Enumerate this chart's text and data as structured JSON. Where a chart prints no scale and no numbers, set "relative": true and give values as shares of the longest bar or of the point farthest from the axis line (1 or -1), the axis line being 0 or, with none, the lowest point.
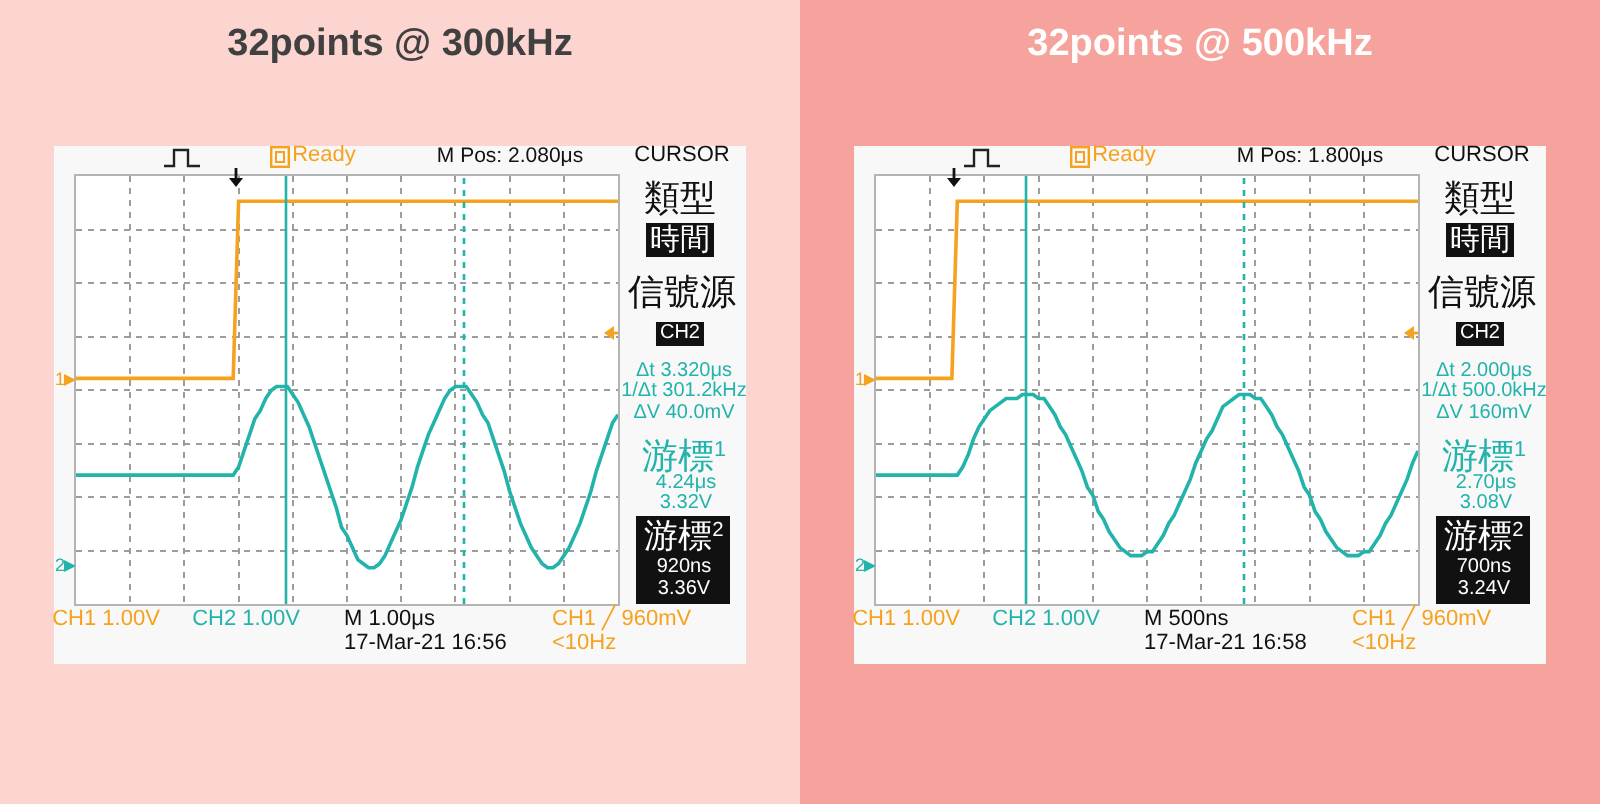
{
  "chart_data": [
    {
      "type": "line",
      "title": "32points @ 300kHz",
      "relative": true,
      "grid": true,
      "categories": [
        null,
        null,
        null,
        null,
        null,
        null,
        null,
        null,
        null,
        null,
        null,
        null,
        null,
        null,
        null,
        null,
        null,
        null,
        null,
        null,
        null,
        null,
        null,
        null,
        null,
        null,
        null,
        null,
        null,
        null,
        null,
        null,
        null,
        null,
        null,
        null,
        null,
        null,
        null,
        null,
        null,
        null,
        null,
        null,
        null,
        null,
        null,
        null,
        null,
        null,
        null,
        null,
        null,
        null,
        null,
        null,
        null,
        null,
        null,
        null,
        null,
        null,
        null,
        null,
        null,
        null,
        null,
        null,
        null,
        null,
        null,
        null,
        null,
        null,
        null,
        null,
        null,
        null,
        null,
        null,
        null,
        null,
        null,
        null,
        null,
        null,
        null,
        null,
        null,
        null,
        null,
        null,
        null,
        null,
        null,
        null,
        null,
        null,
        null,
        null,
        null
      ],
      "series": [
        {
          "color": "#f5a21e",
          "values": [
            0.56,
            0.56,
            0.56,
            0.56,
            0.56,
            0.56,
            0.56,
            0.56,
            0.56,
            0.56,
            0.56,
            0.56,
            0.56,
            0.56,
            0.56,
            0.56,
            0.56,
            0.56,
            0.56,
            0.56,
            0.56,
            0.56,
            0.56,
            0.56,
            0.56,
            0.56,
            0.56,
            0.56,
            0.56,
            0.56,
            1,
            1,
            1,
            1,
            1,
            1,
            1,
            1,
            1,
            1,
            1,
            1,
            1,
            1,
            1,
            1,
            1,
            1,
            1,
            1,
            1,
            1,
            1,
            1,
            1,
            1,
            1,
            1,
            1,
            1,
            1,
            1,
            1,
            1,
            1,
            1,
            1,
            1,
            1,
            1,
            1,
            1,
            1,
            1,
            1,
            1,
            1,
            1,
            1,
            1,
            1,
            1,
            1,
            1,
            1,
            1,
            1,
            1,
            1,
            1,
            1,
            1,
            1,
            1,
            1,
            1,
            1,
            1,
            1,
            1,
            1
          ]
        },
        {
          "color": "#22b3ab",
          "values": [
            0.32,
            0.32,
            0.32,
            0.32,
            0.32,
            0.32,
            0.32,
            0.32,
            0.32,
            0.32,
            0.32,
            0.32,
            0.32,
            0.32,
            0.32,
            0.32,
            0.32,
            0.32,
            0.32,
            0.32,
            0.32,
            0.32,
            0.32,
            0.32,
            0.32,
            0.32,
            0.32,
            0.32,
            0.32,
            0.32,
            0.34,
            0.38,
            0.42,
            0.46,
            0.48,
            0.51,
            0.53,
            0.54,
            0.54,
            0.54,
            0.52,
            0.5,
            0.47,
            0.44,
            0.4,
            0.36,
            0.32,
            0.28,
            0.24,
            0.19,
            0.17,
            0.14,
            0.11,
            0.1,
            0.09,
            0.09,
            0.1,
            0.12,
            0.15,
            0.18,
            0.21,
            0.25,
            0.29,
            0.34,
            0.38,
            0.42,
            0.45,
            0.48,
            0.51,
            0.53,
            0.54,
            0.54,
            0.54,
            0.52,
            0.5,
            0.47,
            0.45,
            0.41,
            0.37,
            0.33,
            0.28,
            0.24,
            0.2,
            0.17,
            0.14,
            0.12,
            0.1,
            0.09,
            0.09,
            0.1,
            0.12,
            0.14,
            0.17,
            0.2,
            0.24,
            0.28,
            0.33,
            0.37,
            0.41,
            0.45,
            0.47
          ]
        }
      ],
      "annotations": [
        "Ready",
        "M Pos: 2.080μs",
        "CURSOR",
        "類型",
        "時間",
        "信號源",
        "CH2",
        "Δt 3.320μs",
        "1/Δt 301.2kHz",
        "ΔV 40.0mV",
        "游標$^{1}$",
        "4.24μs",
        "3.32V",
        "游標$^{2}$",
        "920ns",
        "3.36V",
        "CH1 1.00V",
        "CH2 1.00V",
        "M 1.00μs",
        "17-Mar-21 16:56",
        "CH1 ╱ 960mV",
        "<10Hz",
        "1",
        "2"
      ]
    },
    {
      "type": "line",
      "title": "32points @ 500kHz",
      "relative": true,
      "grid": true,
      "categories": [
        null,
        null,
        null,
        null,
        null,
        null,
        null,
        null,
        null,
        null,
        null,
        null,
        null,
        null,
        null,
        null,
        null,
        null,
        null,
        null,
        null,
        null,
        null,
        null,
        null,
        null,
        null,
        null,
        null,
        null,
        null,
        null,
        null,
        null,
        null,
        null,
        null,
        null,
        null,
        null,
        null,
        null,
        null,
        null,
        null,
        null,
        null,
        null,
        null,
        null,
        null,
        null,
        null,
        null,
        null,
        null,
        null,
        null,
        null,
        null,
        null,
        null,
        null,
        null,
        null,
        null,
        null,
        null,
        null,
        null,
        null,
        null,
        null,
        null,
        null,
        null,
        null,
        null,
        null,
        null,
        null,
        null,
        null,
        null,
        null,
        null,
        null,
        null,
        null,
        null,
        null,
        null,
        null,
        null,
        null,
        null,
        null,
        null,
        null,
        null,
        null
      ],
      "series": [
        {
          "color": "#f5a21e",
          "values": [
            0.56,
            0.56,
            0.56,
            0.56,
            0.56,
            0.56,
            0.56,
            0.56,
            0.56,
            0.56,
            0.56,
            0.56,
            0.56,
            0.56,
            0.56,
            1,
            1,
            1,
            1,
            1,
            1,
            1,
            1,
            1,
            1,
            1,
            1,
            1,
            1,
            1,
            1,
            1,
            1,
            1,
            1,
            1,
            1,
            1,
            1,
            1,
            1,
            1,
            1,
            1,
            1,
            1,
            1,
            1,
            1,
            1,
            1,
            1,
            1,
            1,
            1,
            1,
            1,
            1,
            1,
            1,
            1,
            1,
            1,
            1,
            1,
            1,
            1,
            1,
            1,
            1,
            1,
            1,
            1,
            1,
            1,
            1,
            1,
            1,
            1,
            1,
            1,
            1,
            1,
            1,
            1,
            1,
            1,
            1,
            1,
            1,
            1,
            1,
            1,
            1,
            1,
            1,
            1,
            1,
            1,
            1,
            1
          ]
        },
        {
          "color": "#22b3ab",
          "values": [
            0.32,
            0.32,
            0.32,
            0.32,
            0.32,
            0.32,
            0.32,
            0.32,
            0.32,
            0.32,
            0.32,
            0.32,
            0.32,
            0.32,
            0.32,
            0.32,
            0.34,
            0.37,
            0.41,
            0.44,
            0.46,
            0.48,
            0.49,
            0.5,
            0.51,
            0.51,
            0.51,
            0.52,
            0.52,
            0.52,
            0.51,
            0.51,
            0.49,
            0.47,
            0.44,
            0.42,
            0.39,
            0.36,
            0.33,
            0.29,
            0.27,
            0.23,
            0.21,
            0.18,
            0.16,
            0.14,
            0.13,
            0.12,
            0.12,
            0.12,
            0.13,
            0.13,
            0.15,
            0.17,
            0.2,
            0.22,
            0.25,
            0.28,
            0.31,
            0.35,
            0.38,
            0.41,
            0.43,
            0.46,
            0.49,
            0.5,
            0.51,
            0.52,
            0.52,
            0.52,
            0.51,
            0.51,
            0.49,
            0.47,
            0.44,
            0.42,
            0.39,
            0.36,
            0.33,
            0.29,
            0.27,
            0.23,
            0.21,
            0.18,
            0.16,
            0.14,
            0.13,
            0.12,
            0.12,
            0.12,
            0.13,
            0.13,
            0.15,
            0.17,
            0.2,
            0.22,
            0.25,
            0.28,
            0.31,
            0.35,
            0.38
          ]
        }
      ],
      "annotations": [
        "Ready",
        "M Pos: 1.800μs",
        "CURSOR",
        "類型",
        "時間",
        "信號源",
        "CH2",
        "Δt 2.000μs",
        "1/Δt 500.0kHz",
        "ΔV 160mV",
        "游標$^{1}$",
        "2.70μs",
        "3.08V",
        "游標$^{2}$",
        "700ns",
        "3.24V",
        "CH1 1.00V",
        "CH2 1.00V",
        "M 500ns",
        "17-Mar-21 16:58",
        "CH1 ╱ 960mV",
        "<10Hz",
        "1",
        "2"
      ]
    }
  ]
}
